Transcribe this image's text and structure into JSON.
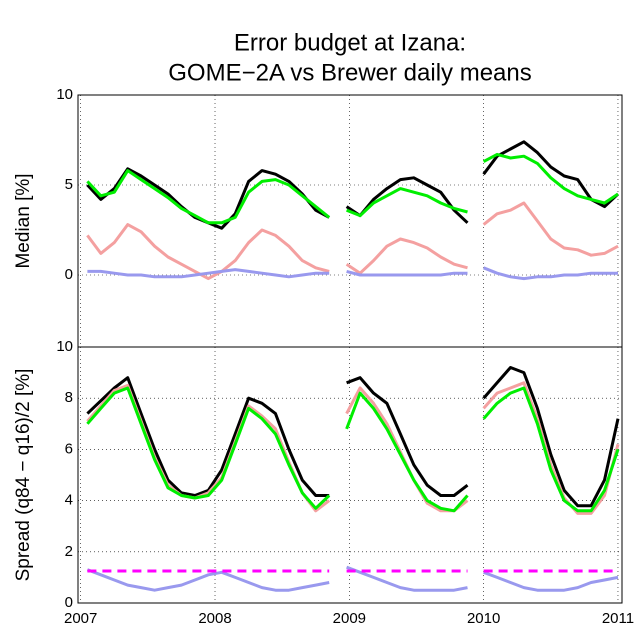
{
  "chart_data": [
    {
      "type": "line",
      "title": [
        "Error budget at Izana:",
        "GOME−2A vs Brewer daily means"
      ],
      "ylabel": "Median [%]",
      "x": [
        2007.05,
        2007.15,
        2007.25,
        2007.35,
        2007.45,
        2007.55,
        2007.65,
        2007.75,
        2007.85,
        2007.95,
        2008.05,
        2008.15,
        2008.25,
        2008.35,
        2008.45,
        2008.55,
        2008.65,
        2008.75,
        2008.85,
        2008.92,
        2008.98,
        2009.08,
        2009.18,
        2009.28,
        2009.38,
        2009.48,
        2009.58,
        2009.68,
        2009.78,
        2009.88,
        2009.94,
        2010.0,
        2010.1,
        2010.2,
        2010.3,
        2010.4,
        2010.5,
        2010.6,
        2010.7,
        2010.8,
        2010.9,
        2011.0
      ],
      "xlim": [
        2006.98,
        2011.03
      ],
      "xticks": [
        2007,
        2008,
        2009,
        2010,
        2011
      ],
      "ylim": [
        -4,
        10
      ],
      "yticks": [
        0,
        5,
        10
      ],
      "grid": true,
      "series": [
        {
          "color": "#000000",
          "values": [
            5.0,
            4.2,
            4.8,
            5.9,
            5.5,
            5.0,
            4.5,
            3.8,
            3.2,
            2.9,
            2.6,
            3.4,
            5.2,
            5.8,
            5.6,
            5.2,
            4.5,
            3.6,
            3.2,
            null,
            3.8,
            3.3,
            4.2,
            4.8,
            5.3,
            5.4,
            5.0,
            4.6,
            3.6,
            2.9,
            null,
            5.6,
            6.6,
            7.0,
            7.4,
            6.8,
            6.0,
            5.5,
            5.3,
            4.2,
            3.8,
            4.5
          ]
        },
        {
          "color": "#00ee00",
          "values": [
            5.2,
            4.4,
            4.6,
            5.8,
            5.3,
            4.8,
            4.3,
            3.7,
            3.3,
            2.9,
            2.9,
            3.2,
            4.6,
            5.2,
            5.3,
            5.0,
            4.4,
            3.8,
            3.2,
            null,
            3.6,
            3.3,
            4.0,
            4.4,
            4.8,
            4.6,
            4.4,
            4.0,
            3.7,
            3.5,
            null,
            6.3,
            6.7,
            6.5,
            6.6,
            6.2,
            5.4,
            4.8,
            4.4,
            4.2,
            4.0,
            4.5
          ]
        },
        {
          "color": "#f4a0a0",
          "values": [
            2.2,
            1.2,
            1.8,
            2.8,
            2.4,
            1.6,
            1.0,
            0.6,
            0.2,
            -0.2,
            0.2,
            0.8,
            1.8,
            2.5,
            2.2,
            1.6,
            0.8,
            0.4,
            0.2,
            null,
            0.6,
            0.1,
            0.8,
            1.6,
            2.0,
            1.8,
            1.5,
            1.0,
            0.6,
            0.4,
            null,
            2.8,
            3.4,
            3.6,
            4.0,
            3.0,
            2.0,
            1.5,
            1.4,
            1.1,
            1.2,
            1.6
          ]
        },
        {
          "color": "#9999ee",
          "values": [
            0.2,
            0.2,
            0.1,
            0.0,
            0.0,
            -0.1,
            -0.1,
            -0.1,
            0.0,
            0.1,
            0.2,
            0.3,
            0.2,
            0.1,
            0.0,
            -0.1,
            0.0,
            0.1,
            0.1,
            null,
            0.2,
            0.0,
            0.0,
            0.0,
            0.0,
            0.0,
            0.0,
            0.0,
            0.1,
            0.1,
            null,
            0.4,
            0.1,
            -0.1,
            -0.2,
            -0.1,
            -0.1,
            0.0,
            0.0,
            0.1,
            0.1,
            0.1
          ]
        }
      ]
    },
    {
      "type": "line",
      "ylabel": "Spread (q84 − q16)/2 [%]",
      "x": [
        2007.05,
        2007.15,
        2007.25,
        2007.35,
        2007.45,
        2007.55,
        2007.65,
        2007.75,
        2007.85,
        2007.95,
        2008.05,
        2008.15,
        2008.25,
        2008.35,
        2008.45,
        2008.55,
        2008.65,
        2008.75,
        2008.85,
        2008.92,
        2008.98,
        2009.08,
        2009.18,
        2009.28,
        2009.38,
        2009.48,
        2009.58,
        2009.68,
        2009.78,
        2009.88,
        2009.94,
        2010.0,
        2010.1,
        2010.2,
        2010.3,
        2010.4,
        2010.5,
        2010.6,
        2010.7,
        2010.8,
        2010.9,
        2011.0
      ],
      "xlim": [
        2006.98,
        2011.03
      ],
      "xticks": [
        2007,
        2008,
        2009,
        2010,
        2011
      ],
      "ylim": [
        0,
        10
      ],
      "yticks": [
        0,
        2,
        4,
        6,
        8,
        10
      ],
      "grid": true,
      "series": [
        {
          "color": "#000000",
          "values": [
            7.4,
            7.9,
            8.4,
            8.8,
            7.4,
            6.0,
            4.8,
            4.3,
            4.2,
            4.4,
            5.2,
            6.6,
            8.0,
            7.8,
            7.4,
            6.0,
            4.8,
            4.2,
            4.2,
            null,
            8.6,
            8.8,
            8.2,
            7.8,
            6.6,
            5.4,
            4.6,
            4.2,
            4.2,
            4.6,
            null,
            8.0,
            8.6,
            9.2,
            9.0,
            7.6,
            5.8,
            4.4,
            3.8,
            3.8,
            4.8,
            7.2
          ]
        },
        {
          "color": "#f4a0a0",
          "values": [
            7.1,
            7.7,
            8.3,
            8.5,
            7.1,
            5.7,
            4.6,
            4.2,
            4.1,
            4.3,
            4.9,
            6.3,
            7.7,
            7.3,
            6.8,
            5.5,
            4.3,
            3.6,
            4.0,
            null,
            7.4,
            8.4,
            7.8,
            7.0,
            5.9,
            4.8,
            3.9,
            3.6,
            3.6,
            4.0,
            null,
            7.6,
            8.2,
            8.4,
            8.6,
            7.2,
            5.4,
            4.1,
            3.5,
            3.5,
            4.2,
            6.2
          ]
        },
        {
          "color": "#00ee00",
          "values": [
            7.0,
            7.6,
            8.2,
            8.4,
            7.0,
            5.6,
            4.5,
            4.2,
            4.1,
            4.2,
            4.8,
            6.2,
            7.6,
            7.2,
            6.6,
            5.4,
            4.3,
            3.7,
            4.2,
            null,
            6.8,
            8.2,
            7.6,
            6.8,
            5.8,
            4.8,
            4.0,
            3.7,
            3.6,
            4.2,
            null,
            7.2,
            7.8,
            8.2,
            8.4,
            7.0,
            5.2,
            4.0,
            3.6,
            3.6,
            4.4,
            6.0
          ]
        },
        {
          "color": "#9999ee",
          "values": [
            1.3,
            1.1,
            0.9,
            0.7,
            0.6,
            0.5,
            0.6,
            0.7,
            0.9,
            1.1,
            1.2,
            1.0,
            0.8,
            0.6,
            0.5,
            0.5,
            0.6,
            0.7,
            0.8,
            null,
            1.4,
            1.2,
            1.0,
            0.8,
            0.6,
            0.5,
            0.5,
            0.5,
            0.5,
            0.6,
            null,
            1.2,
            1.0,
            0.8,
            0.6,
            0.5,
            0.5,
            0.5,
            0.6,
            0.8,
            0.9,
            1.0
          ]
        },
        {
          "color": "#ff00ff",
          "linestyle": "dashed",
          "values": [
            1.25,
            1.25,
            1.25,
            1.25,
            1.25,
            1.25,
            1.25,
            1.25,
            1.25,
            1.25,
            1.25,
            1.25,
            1.25,
            1.25,
            1.25,
            1.25,
            1.25,
            1.25,
            1.25,
            null,
            1.25,
            1.25,
            1.25,
            1.25,
            1.25,
            1.25,
            1.25,
            1.25,
            1.25,
            1.25,
            null,
            1.25,
            1.25,
            1.25,
            1.25,
            1.25,
            1.25,
            1.25,
            1.25,
            1.25,
            1.25,
            1.25
          ]
        }
      ]
    }
  ]
}
